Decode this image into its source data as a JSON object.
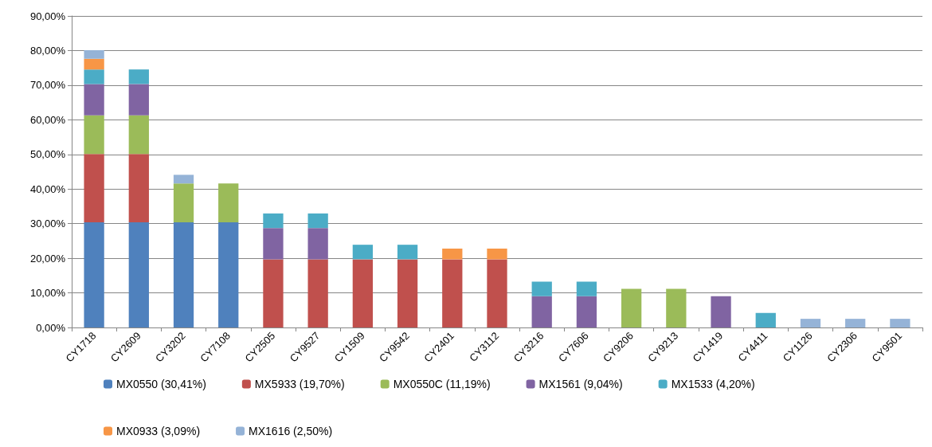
{
  "chart_data": {
    "type": "bar",
    "stacked": true,
    "grid": "y",
    "legend": "bottom",
    "categories": [
      "CY1718",
      "CY2609",
      "CY3202",
      "CY7108",
      "CY2505",
      "CY9527",
      "CY1509",
      "CY9542",
      "CY2401",
      "CY3112",
      "CY3216",
      "CY7606",
      "CY9206",
      "CY9213",
      "CY1419",
      "CY4411",
      "CY1126",
      "CY2306",
      "CY9501"
    ],
    "ylim": [
      0,
      90
    ],
    "yticks": [
      {
        "value": 0,
        "label": "0,00%"
      },
      {
        "value": 10,
        "label": "10,00%"
      },
      {
        "value": 20,
        "label": "20,00%"
      },
      {
        "value": 30,
        "label": "30,00%"
      },
      {
        "value": 40,
        "label": "40,00%"
      },
      {
        "value": 50,
        "label": "50,00%"
      },
      {
        "value": 60,
        "label": "60,00%"
      },
      {
        "value": 70,
        "label": "70,00%"
      },
      {
        "value": 80,
        "label": "80,00%"
      },
      {
        "value": 90,
        "label": "90,00%"
      }
    ],
    "series": [
      {
        "name": "MX0550 (30,41%)",
        "color": "#4f81bd",
        "values": [
          30.41,
          30.41,
          30.41,
          30.41,
          null,
          null,
          null,
          null,
          null,
          null,
          null,
          null,
          null,
          null,
          null,
          null,
          null,
          null,
          null
        ]
      },
      {
        "name": "MX5933 (19,70%)",
        "color": "#c0504d",
        "values": [
          19.7,
          19.7,
          null,
          null,
          19.7,
          19.7,
          19.7,
          19.7,
          19.7,
          19.7,
          null,
          null,
          null,
          null,
          null,
          null,
          null,
          null,
          null
        ]
      },
      {
        "name": "MX0550C (11,19%)",
        "color": "#9bbb59",
        "values": [
          11.19,
          11.19,
          11.19,
          11.19,
          null,
          null,
          null,
          null,
          null,
          null,
          null,
          null,
          11.19,
          11.19,
          null,
          null,
          null,
          null,
          null
        ]
      },
      {
        "name": "MX1561 (9,04%)",
        "color": "#8064a2",
        "values": [
          9.04,
          9.04,
          null,
          null,
          9.04,
          9.04,
          null,
          null,
          null,
          null,
          9.04,
          9.04,
          null,
          null,
          9.04,
          null,
          null,
          null,
          null
        ]
      },
      {
        "name": "MX1533 (4,20%)",
        "color": "#4bacc6",
        "values": [
          4.2,
          4.2,
          null,
          null,
          4.2,
          4.2,
          4.2,
          4.2,
          null,
          null,
          4.2,
          4.2,
          null,
          null,
          null,
          4.2,
          null,
          null,
          null
        ]
      },
      {
        "name": "MX0933 (3,09%)",
        "color": "#f79646",
        "values": [
          3.09,
          null,
          null,
          null,
          null,
          null,
          null,
          null,
          3.09,
          3.09,
          null,
          null,
          null,
          null,
          null,
          null,
          null,
          null,
          null
        ]
      },
      {
        "name": "MX1616 (2,50%)",
        "color": "#95b3d7",
        "values": [
          2.5,
          null,
          2.5,
          null,
          null,
          null,
          null,
          null,
          null,
          null,
          null,
          null,
          null,
          null,
          null,
          null,
          2.5,
          2.5,
          2.5
        ]
      }
    ]
  }
}
